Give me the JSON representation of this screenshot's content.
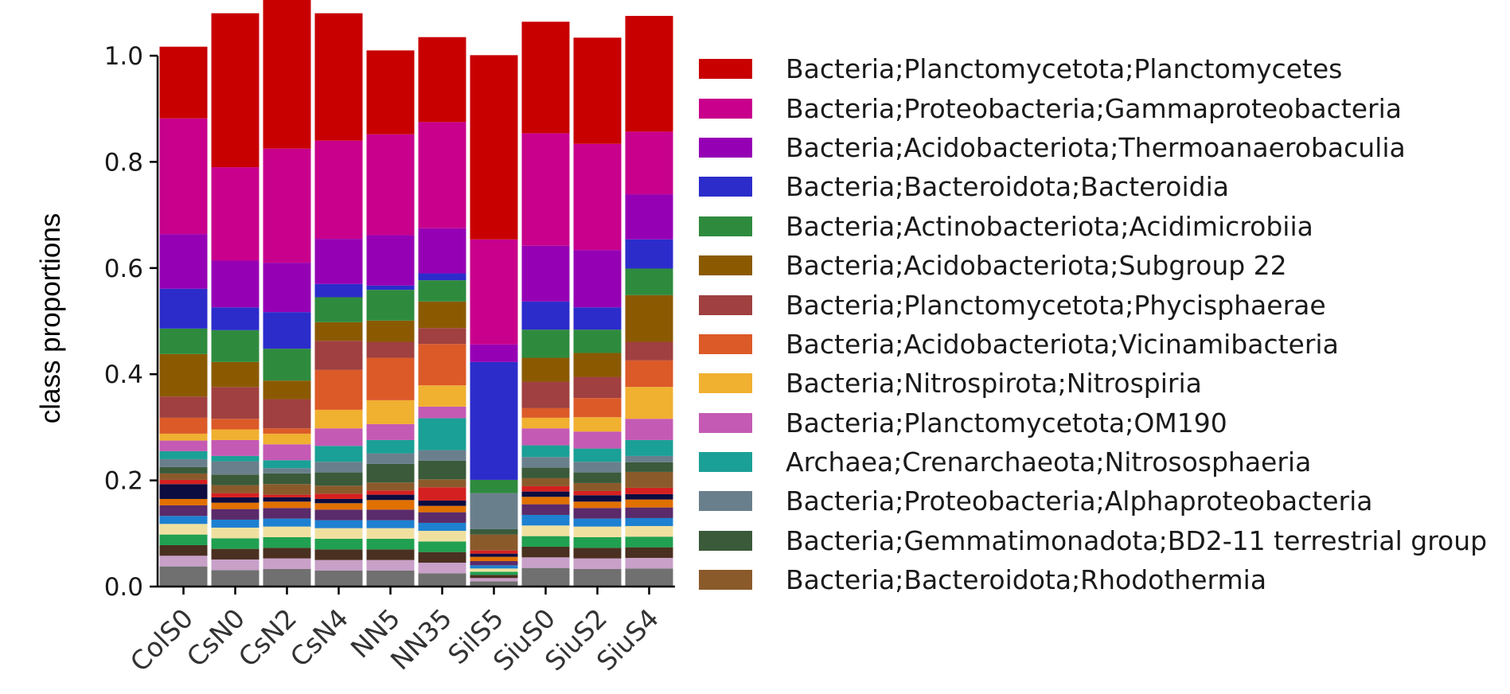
{
  "chart_data": {
    "type": "bar",
    "stacked": true,
    "normalized": true,
    "ylabel": "class proportions",
    "xlabel": "",
    "ylim": [
      0,
      1
    ],
    "yticks": [
      "0.0",
      "0.2",
      "0.4",
      "0.6",
      "0.8",
      "1.0"
    ],
    "categories": [
      "ColS0",
      "CsN0",
      "CsN2",
      "CsN4",
      "NN5",
      "NN35",
      "SilS5",
      "SiuS0",
      "SiuS2",
      "SiuS4"
    ],
    "legend_position": "right",
    "series": [
      {
        "name": "Bacteria;Planctomycetota;Planctomycetes",
        "color": "#c80000",
        "values": [
          0.135,
          0.29,
          0.288,
          0.24,
          0.158,
          0.16,
          0.347,
          0.21,
          0.2,
          0.218
        ]
      },
      {
        "name": "Bacteria;Proteobacteria;Gammaproteobacteria",
        "color": "#c8008c",
        "values": [
          0.218,
          0.176,
          0.215,
          0.185,
          0.19,
          0.2,
          0.198,
          0.212,
          0.2,
          0.118
        ]
      },
      {
        "name": "Bacteria;Acidobacteriota;Thermoanaerobaculia",
        "color": "#9600b4",
        "values": [
          0.103,
          0.088,
          0.093,
          0.085,
          0.095,
          0.085,
          0.033,
          0.105,
          0.108,
          0.085
        ]
      },
      {
        "name": "Bacteria;Bacteroidota;Bacteroidia",
        "color": "#2c2ccb",
        "values": [
          0.075,
          0.043,
          0.069,
          0.025,
          0.008,
          0.013,
          0.222,
          0.053,
          0.042,
          0.055
        ]
      },
      {
        "name": "Bacteria;Actinobacteriota;Acidimicrobiia",
        "color": "#2e8b3e",
        "values": [
          0.048,
          0.06,
          0.06,
          0.047,
          0.058,
          0.04,
          0.025,
          0.053,
          0.044,
          0.05
        ]
      },
      {
        "name": "Bacteria;Acidobacteriota;Subgroup 22",
        "color": "#8b5a00",
        "values": [
          0.08,
          0.047,
          0.035,
          0.035,
          0.04,
          0.05,
          0.0,
          0.045,
          0.045,
          0.088
        ]
      },
      {
        "name": "Bacteria;Planctomycetota;Phycisphaerae",
        "color": "#a04040",
        "values": [
          0.04,
          0.06,
          0.055,
          0.055,
          0.03,
          0.03,
          0.0,
          0.05,
          0.04,
          0.035
        ]
      },
      {
        "name": "Bacteria;Acidobacteriota;Vicinamibacteria",
        "color": "#dc5a28",
        "values": [
          0.03,
          0.02,
          0.01,
          0.075,
          0.08,
          0.078,
          0.0,
          0.018,
          0.036,
          0.05
        ]
      },
      {
        "name": "Bacteria;Nitrospirota;Nitrospiria",
        "color": "#f0b030",
        "values": [
          0.013,
          0.02,
          0.02,
          0.035,
          0.045,
          0.04,
          0.0,
          0.02,
          0.027,
          0.06
        ]
      },
      {
        "name": "Bacteria;Planctomycetota;OM190",
        "color": "#c45ab4",
        "values": [
          0.02,
          0.03,
          0.03,
          0.033,
          0.03,
          0.022,
          0.0,
          0.032,
          0.032,
          0.04
        ]
      },
      {
        "name": "Archaea;Crenarchaeota;Nitrososphaeria",
        "color": "#1aa096",
        "values": [
          0.015,
          0.01,
          0.015,
          0.03,
          0.025,
          0.06,
          0.0,
          0.022,
          0.025,
          0.03
        ]
      },
      {
        "name": "Bacteria;Proteobacteria;Alphaproteobacteria",
        "color": "#6a7f8c",
        "values": [
          0.015,
          0.025,
          0.01,
          0.02,
          0.02,
          0.02,
          0.068,
          0.02,
          0.02,
          0.012
        ]
      },
      {
        "name": "Bacteria;Gemmatimonadota;BD2-11 terrestrial group",
        "color": "#3a5a3a",
        "values": [
          0.012,
          0.02,
          0.02,
          0.025,
          0.035,
          0.035,
          0.01,
          0.02,
          0.02,
          0.018
        ]
      },
      {
        "name": "Bacteria;Bacteroidota;Rhodothermia",
        "color": "#8b5a2b",
        "values": [
          0.012,
          0.015,
          0.02,
          0.015,
          0.015,
          0.015,
          0.03,
          0.015,
          0.015,
          0.03
        ]
      },
      {
        "name": "",
        "color": "#d42020",
        "values": [
          0.008,
          0.008,
          0.005,
          0.01,
          0.008,
          0.025,
          0.006,
          0.01,
          0.008,
          0.012
        ]
      },
      {
        "name": "",
        "color": "#0c0c40",
        "values": [
          0.028,
          0.01,
          0.008,
          0.008,
          0.01,
          0.01,
          0.006,
          0.01,
          0.012,
          0.01
        ]
      },
      {
        "name": "",
        "color": "#e07000",
        "values": [
          0.012,
          0.012,
          0.012,
          0.012,
          0.018,
          0.012,
          0.008,
          0.014,
          0.012,
          0.015
        ]
      },
      {
        "name": "",
        "color": "#5a2a6a",
        "values": [
          0.02,
          0.02,
          0.02,
          0.02,
          0.02,
          0.02,
          0.008,
          0.02,
          0.02,
          0.02
        ]
      },
      {
        "name": "",
        "color": "#1e80d0",
        "values": [
          0.015,
          0.015,
          0.015,
          0.015,
          0.015,
          0.015,
          0.006,
          0.02,
          0.015,
          0.015
        ]
      },
      {
        "name": "",
        "color": "#f0e0a0",
        "values": [
          0.02,
          0.02,
          0.02,
          0.02,
          0.02,
          0.02,
          0.006,
          0.02,
          0.02,
          0.02
        ]
      },
      {
        "name": "",
        "color": "#20a050",
        "values": [
          0.02,
          0.02,
          0.02,
          0.02,
          0.02,
          0.02,
          0.006,
          0.02,
          0.02,
          0.02
        ]
      },
      {
        "name": "",
        "color": "#4a3020",
        "values": [
          0.02,
          0.02,
          0.02,
          0.02,
          0.02,
          0.02,
          0.006,
          0.02,
          0.02,
          0.02
        ]
      },
      {
        "name": "",
        "color": "#c8a0c8",
        "values": [
          0.02,
          0.02,
          0.02,
          0.02,
          0.02,
          0.02,
          0.006,
          0.02,
          0.02,
          0.02
        ]
      },
      {
        "name": "",
        "color": "#707070",
        "values": [
          0.038,
          0.031,
          0.033,
          0.03,
          0.03,
          0.025,
          0.01,
          0.035,
          0.033,
          0.034
        ]
      }
    ]
  }
}
